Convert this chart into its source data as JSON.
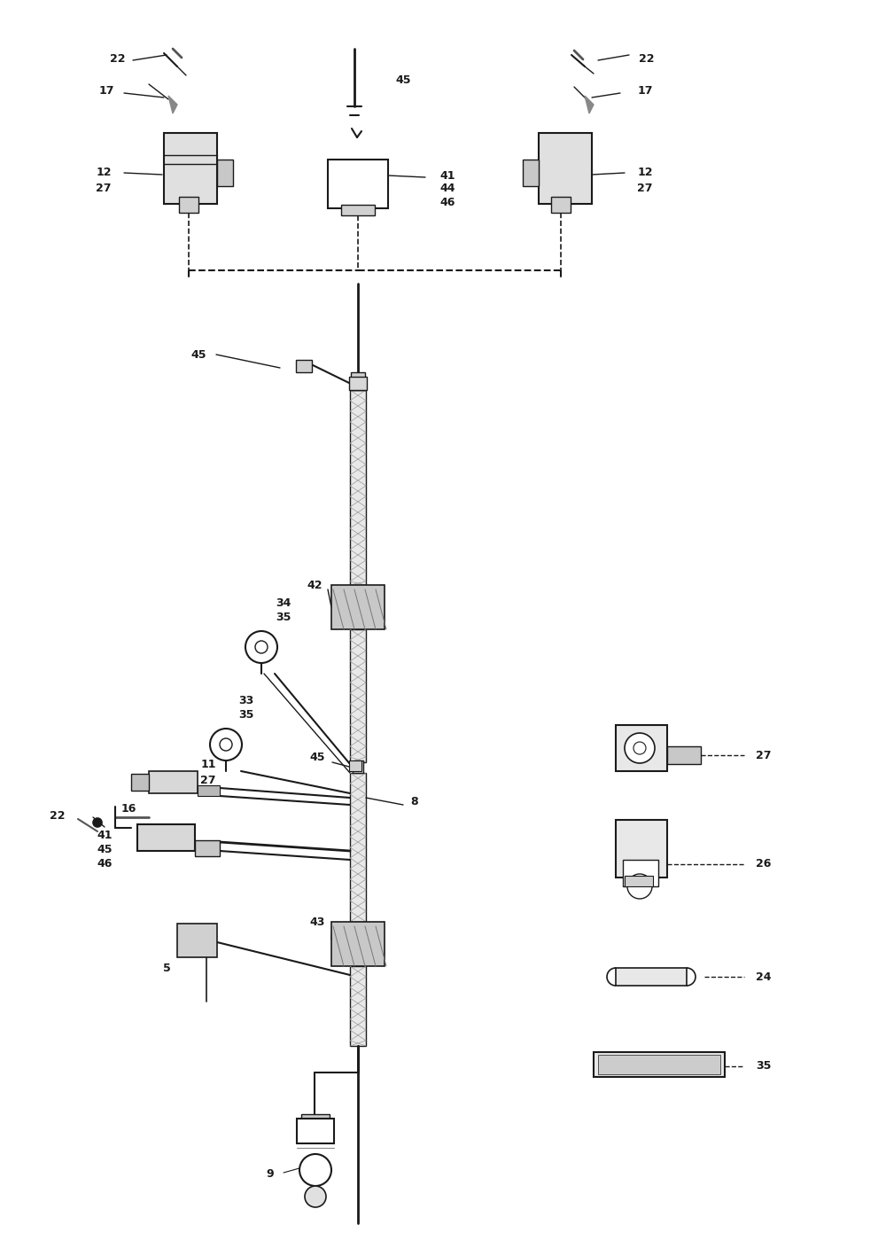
{
  "bg_color": "#ffffff",
  "line_color": "#1a1a1a",
  "gray_color": "#555555",
  "light_gray": "#888888",
  "figsize": [
    10.0,
    14.08
  ],
  "dpi": 100
}
